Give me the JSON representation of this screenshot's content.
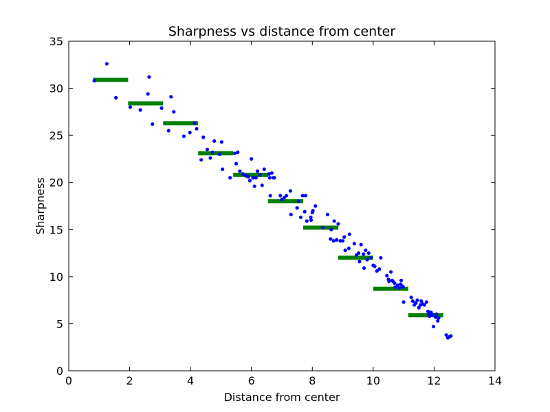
{
  "chart_data": {
    "type": "scatter",
    "title": "Sharpness vs distance from center",
    "xlabel": "Distance from center",
    "ylabel": "Sharpness",
    "xlim": [
      0,
      14
    ],
    "ylim": [
      0,
      35
    ],
    "xticks": [
      "0",
      "2",
      "4",
      "6",
      "8",
      "10",
      "12",
      "14"
    ],
    "yticks": [
      "0",
      "5",
      "10",
      "15",
      "20",
      "25",
      "30",
      "35"
    ],
    "grid": false,
    "legend": "none",
    "colors": {
      "points": "#0000ff",
      "bins": "#008000",
      "frame": "#000000"
    },
    "series": [
      {
        "kind": "scatter",
        "points": [
          [
            0.84,
            30.8
          ],
          [
            1.25,
            32.6
          ],
          [
            1.55,
            29.0
          ],
          [
            2.02,
            28.0
          ],
          [
            2.35,
            27.7
          ],
          [
            2.6,
            29.4
          ],
          [
            2.64,
            31.2
          ],
          [
            2.75,
            26.2
          ],
          [
            3.05,
            27.9
          ],
          [
            3.28,
            25.5
          ],
          [
            3.36,
            29.1
          ],
          [
            3.45,
            27.5
          ],
          [
            3.78,
            24.9
          ],
          [
            3.98,
            25.3
          ],
          [
            4.13,
            26.3
          ],
          [
            4.2,
            25.7
          ],
          [
            4.35,
            22.4
          ],
          [
            4.42,
            24.8
          ],
          [
            4.55,
            23.5
          ],
          [
            4.65,
            22.6
          ],
          [
            4.72,
            23.2
          ],
          [
            4.78,
            24.4
          ],
          [
            4.95,
            23.0
          ],
          [
            5.02,
            24.3
          ],
          [
            5.05,
            21.4
          ],
          [
            5.3,
            20.5
          ],
          [
            5.45,
            23.1
          ],
          [
            5.5,
            22.0
          ],
          [
            5.55,
            23.2
          ],
          [
            5.62,
            21.2
          ],
          [
            5.72,
            20.9
          ],
          [
            5.82,
            20.7
          ],
          [
            5.9,
            20.6
          ],
          [
            5.95,
            20.2
          ],
          [
            6.0,
            22.5
          ],
          [
            6.05,
            20.5
          ],
          [
            6.1,
            19.6
          ],
          [
            6.15,
            20.5
          ],
          [
            6.2,
            21.2
          ],
          [
            6.28,
            20.8
          ],
          [
            6.35,
            19.7
          ],
          [
            6.42,
            21.4
          ],
          [
            6.58,
            20.9
          ],
          [
            6.6,
            20.5
          ],
          [
            6.62,
            18.6
          ],
          [
            6.67,
            21.0
          ],
          [
            6.72,
            20.5
          ],
          [
            6.75,
            20.5
          ],
          [
            6.95,
            18.6
          ],
          [
            7.0,
            18.2
          ],
          [
            7.08,
            18.4
          ],
          [
            7.15,
            18.6
          ],
          [
            7.28,
            19.1
          ],
          [
            7.3,
            16.6
          ],
          [
            7.5,
            17.3
          ],
          [
            7.55,
            18.0
          ],
          [
            7.62,
            16.3
          ],
          [
            7.68,
            18.6
          ],
          [
            7.75,
            16.9
          ],
          [
            7.78,
            18.6
          ],
          [
            7.82,
            15.9
          ],
          [
            7.95,
            16.3
          ],
          [
            7.96,
            16.0
          ],
          [
            8.0,
            16.8
          ],
          [
            8.02,
            17.0
          ],
          [
            8.1,
            17.5
          ],
          [
            8.35,
            15.2
          ],
          [
            8.5,
            16.6
          ],
          [
            8.6,
            14.0
          ],
          [
            8.62,
            15.0
          ],
          [
            8.7,
            13.8
          ],
          [
            8.72,
            15.9
          ],
          [
            8.8,
            13.9
          ],
          [
            8.85,
            15.6
          ],
          [
            8.92,
            13.8
          ],
          [
            9.0,
            13.8
          ],
          [
            9.05,
            14.2
          ],
          [
            9.08,
            12.8
          ],
          [
            9.2,
            13.0
          ],
          [
            9.22,
            14.5
          ],
          [
            9.38,
            13.5
          ],
          [
            9.45,
            12.3
          ],
          [
            9.52,
            12.5
          ],
          [
            9.55,
            11.6
          ],
          [
            9.6,
            13.4
          ],
          [
            9.68,
            12.4
          ],
          [
            9.7,
            10.9
          ],
          [
            9.75,
            12.8
          ],
          [
            9.8,
            11.8
          ],
          [
            9.85,
            12.5
          ],
          [
            9.92,
            12.0
          ],
          [
            10.0,
            11.2
          ],
          [
            10.05,
            11.1
          ],
          [
            10.12,
            10.6
          ],
          [
            10.2,
            10.8
          ],
          [
            10.25,
            12.0
          ],
          [
            10.45,
            10.1
          ],
          [
            10.5,
            9.7
          ],
          [
            10.52,
            9.5
          ],
          [
            10.58,
            10.5
          ],
          [
            10.62,
            9.6
          ],
          [
            10.65,
            9.5
          ],
          [
            10.7,
            9.3
          ],
          [
            10.72,
            8.9
          ],
          [
            10.8,
            9.1
          ],
          [
            10.85,
            8.8
          ],
          [
            10.9,
            9.2
          ],
          [
            10.92,
            9.6
          ],
          [
            10.95,
            9.0
          ],
          [
            10.98,
            8.9
          ],
          [
            11.0,
            7.3
          ],
          [
            11.25,
            7.8
          ],
          [
            11.3,
            7.4
          ],
          [
            11.35,
            7.0
          ],
          [
            11.4,
            7.2
          ],
          [
            11.45,
            7.5
          ],
          [
            11.5,
            6.7
          ],
          [
            11.55,
            7.0
          ],
          [
            11.58,
            7.4
          ],
          [
            11.62,
            7.1
          ],
          [
            11.68,
            7.0
          ],
          [
            11.75,
            7.3
          ],
          [
            11.8,
            6.3
          ],
          [
            11.82,
            6.0
          ],
          [
            11.85,
            5.8
          ],
          [
            11.9,
            6.2
          ],
          [
            11.93,
            6.0
          ],
          [
            11.95,
            5.9
          ],
          [
            11.98,
            4.7
          ],
          [
            12.05,
            5.7
          ],
          [
            12.08,
            6.0
          ],
          [
            12.12,
            5.3
          ],
          [
            12.15,
            5.6
          ],
          [
            12.4,
            3.8
          ],
          [
            12.45,
            3.5
          ],
          [
            12.5,
            3.6
          ],
          [
            12.55,
            3.7
          ]
        ]
      },
      {
        "kind": "bins",
        "segments": [
          [
            0.8,
            1.95,
            30.9
          ],
          [
            1.95,
            3.1,
            28.4
          ],
          [
            3.1,
            4.25,
            26.3
          ],
          [
            4.25,
            5.4,
            23.1
          ],
          [
            5.4,
            6.55,
            20.8
          ],
          [
            6.55,
            7.7,
            18.0
          ],
          [
            7.7,
            8.85,
            15.2
          ],
          [
            8.85,
            10.0,
            12.0
          ],
          [
            10.0,
            11.15,
            8.7
          ],
          [
            11.15,
            12.3,
            5.9
          ]
        ]
      }
    ]
  }
}
